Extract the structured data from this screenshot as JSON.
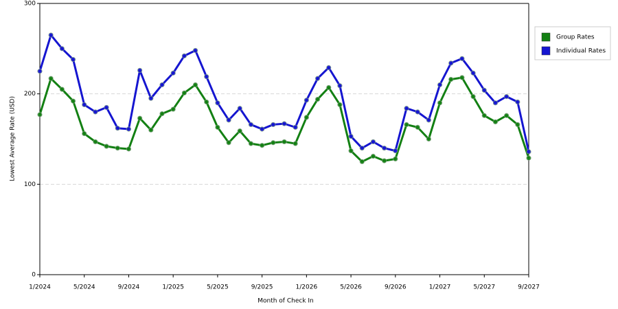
{
  "chart_data": {
    "type": "line",
    "x_label": "Month of Check In",
    "y_label": "Lowest Average Rate (USD)",
    "categories": [
      "1/2024",
      null,
      null,
      null,
      "5/2024",
      null,
      null,
      null,
      "9/2024",
      null,
      null,
      null,
      "1/2025",
      null,
      null,
      null,
      "5/2025",
      null,
      null,
      null,
      "9/2025",
      null,
      null,
      null,
      "1/2026",
      null,
      null,
      null,
      "5/2026",
      null,
      null,
      null,
      "9/2026",
      null,
      null,
      null,
      "1/2027",
      null,
      null,
      null,
      "5/2027",
      null,
      null,
      null,
      "9/2027"
    ],
    "series": [
      {
        "name": "Group Rates",
        "color": "#138013",
        "values": [
          177,
          217,
          205,
          192,
          156,
          147,
          142,
          140,
          139,
          173,
          160,
          178,
          183,
          201,
          210,
          191,
          163,
          146,
          159,
          145,
          143,
          146,
          147,
          145,
          174,
          194,
          207,
          188,
          137,
          125,
          131,
          126,
          128,
          166,
          163,
          150,
          190,
          216,
          218,
          197,
          176,
          169,
          176,
          166,
          129
        ]
      },
      {
        "name": "Individual Rates",
        "color": "#1515d0",
        "values": [
          225,
          265,
          250,
          238,
          188,
          180,
          185,
          162,
          161,
          226,
          195,
          210,
          223,
          242,
          248,
          219,
          190,
          171,
          184,
          166,
          161,
          166,
          167,
          163,
          193,
          217,
          229,
          209,
          153,
          140,
          147,
          140,
          137,
          184,
          180,
          171,
          210,
          234,
          239,
          223,
          204,
          190,
          197,
          191,
          136
        ]
      }
    ],
    "ylim": [
      0,
      300
    ],
    "yticks": [
      0,
      100,
      200,
      300
    ],
    "grid": true,
    "legend": "right"
  }
}
